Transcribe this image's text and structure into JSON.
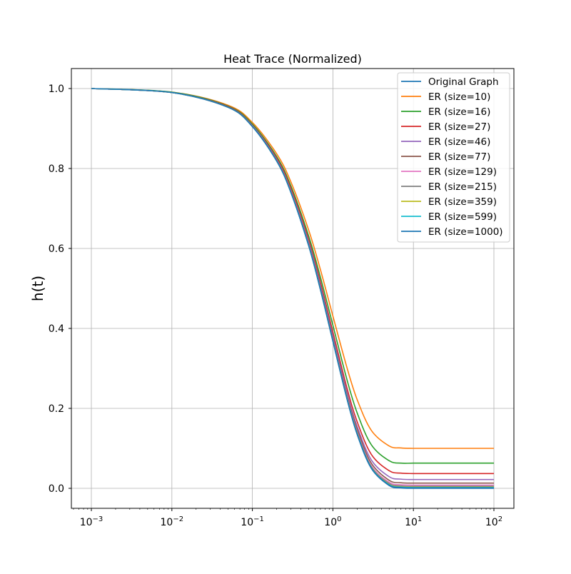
{
  "chart_data": {
    "type": "line",
    "title": "Heat Trace (Normalized)",
    "xlabel": "",
    "ylabel": "h(t)",
    "xscale": "log",
    "xlim": [
      0.001,
      100
    ],
    "ylim": [
      -0.05,
      1.05
    ],
    "x_ticks": [
      {
        "value": 0.001,
        "base": "10",
        "exp": "−3"
      },
      {
        "value": 0.01,
        "base": "10",
        "exp": "−2"
      },
      {
        "value": 0.1,
        "base": "10",
        "exp": "−1"
      },
      {
        "value": 1,
        "base": "10",
        "exp": "0"
      },
      {
        "value": 10,
        "base": "10",
        "exp": "1"
      },
      {
        "value": 100,
        "base": "10",
        "exp": "2"
      }
    ],
    "y_ticks": [
      {
        "value": 0.0,
        "label": "0.0"
      },
      {
        "value": 0.2,
        "label": "0.2"
      },
      {
        "value": 0.4,
        "label": "0.4"
      },
      {
        "value": 0.6,
        "label": "0.6"
      },
      {
        "value": 0.8,
        "label": "0.8"
      },
      {
        "value": 1.0,
        "label": "1.0"
      }
    ],
    "grid": true,
    "legend_position": "top-right",
    "x": [
      0.001,
      0.01,
      0.05,
      0.1,
      0.2,
      0.3,
      0.5,
      0.7,
      1,
      1.5,
      2,
      3,
      5,
      7,
      10,
      20,
      50,
      100
    ],
    "series": [
      {
        "name": "Original Graph",
        "color": "#1f77b4",
        "values": [
          1.0,
          0.99,
          0.953,
          0.905,
          0.819,
          0.741,
          0.607,
          0.497,
          0.368,
          0.223,
          0.135,
          0.05,
          0.007,
          0.001,
          0.0,
          0.0,
          0.0,
          0.0
        ]
      },
      {
        "name": "ER (size=10)",
        "color": "#ff7f0e",
        "values": [
          1.0,
          0.991,
          0.958,
          0.915,
          0.837,
          0.767,
          0.646,
          0.547,
          0.431,
          0.301,
          0.222,
          0.145,
          0.106,
          0.101,
          0.1,
          0.1,
          0.1,
          0.1
        ]
      },
      {
        "name": "ER (size=16)",
        "color": "#2ca02c",
        "values": [
          1.0,
          0.991,
          0.956,
          0.911,
          0.83,
          0.757,
          0.631,
          0.528,
          0.408,
          0.271,
          0.189,
          0.109,
          0.069,
          0.063,
          0.063,
          0.063,
          0.063,
          0.063
        ]
      },
      {
        "name": "ER (size=27)",
        "color": "#d62728",
        "values": [
          1.0,
          0.99,
          0.955,
          0.908,
          0.826,
          0.751,
          0.622,
          0.516,
          0.391,
          0.25,
          0.167,
          0.085,
          0.044,
          0.038,
          0.037,
          0.037,
          0.037,
          0.037
        ]
      },
      {
        "name": "ER (size=46)",
        "color": "#9467bd",
        "values": [
          1.0,
          0.99,
          0.954,
          0.907,
          0.823,
          0.746,
          0.616,
          0.508,
          0.381,
          0.239,
          0.155,
          0.071,
          0.029,
          0.023,
          0.022,
          0.022,
          0.022,
          0.022
        ]
      },
      {
        "name": "ER (size=77)",
        "color": "#8c564b",
        "values": [
          1.0,
          0.99,
          0.954,
          0.906,
          0.821,
          0.744,
          0.612,
          0.503,
          0.376,
          0.232,
          0.148,
          0.063,
          0.02,
          0.014,
          0.013,
          0.013,
          0.013,
          0.013
        ]
      },
      {
        "name": "ER (size=129)",
        "color": "#e377c2",
        "values": [
          1.0,
          0.99,
          0.953,
          0.906,
          0.82,
          0.743,
          0.61,
          0.5,
          0.372,
          0.228,
          0.142,
          0.057,
          0.015,
          0.009,
          0.008,
          0.008,
          0.008,
          0.008
        ]
      },
      {
        "name": "ER (size=215)",
        "color": "#7f7f7f",
        "values": [
          1.0,
          0.99,
          0.953,
          0.905,
          0.82,
          0.742,
          0.609,
          0.499,
          0.37,
          0.226,
          0.14,
          0.054,
          0.012,
          0.006,
          0.005,
          0.005,
          0.005,
          0.005
        ]
      },
      {
        "name": "ER (size=359)",
        "color": "#bcbd22",
        "values": [
          1.0,
          0.99,
          0.953,
          0.905,
          0.819,
          0.742,
          0.608,
          0.498,
          0.369,
          0.225,
          0.138,
          0.053,
          0.01,
          0.004,
          0.003,
          0.003,
          0.003,
          0.003
        ]
      },
      {
        "name": "ER (size=599)",
        "color": "#17becf",
        "values": [
          1.0,
          0.99,
          0.953,
          0.905,
          0.819,
          0.741,
          0.608,
          0.498,
          0.369,
          0.224,
          0.137,
          0.052,
          0.009,
          0.003,
          0.002,
          0.002,
          0.002,
          0.002
        ]
      },
      {
        "name": "ER (size=1000)",
        "color": "#1f77b4",
        "values": [
          1.0,
          0.99,
          0.953,
          0.905,
          0.819,
          0.741,
          0.607,
          0.497,
          0.368,
          0.223,
          0.136,
          0.051,
          0.008,
          0.002,
          0.001,
          0.001,
          0.001,
          0.001
        ]
      }
    ]
  }
}
